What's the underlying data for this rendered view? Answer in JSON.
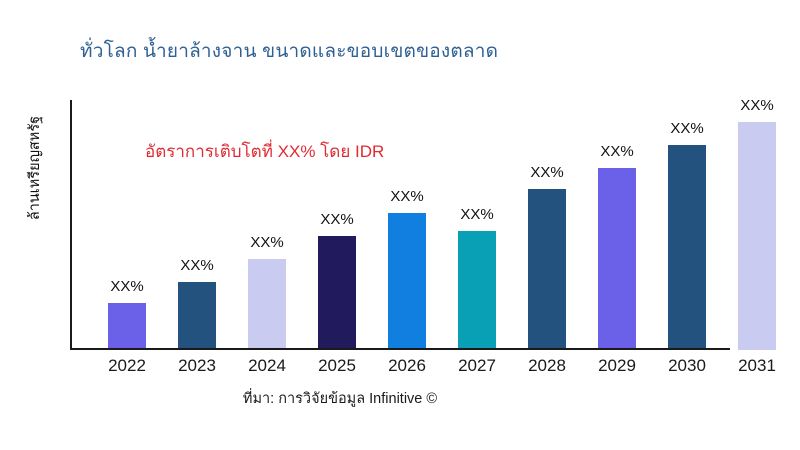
{
  "title": "ทั่วโลก น้ำยาล้างจาน ขนาดและขอบเขตของตลาด",
  "annotation": "อัตราการเติบโตที่ XX% โดย IDR",
  "source": "ที่มา: การวิจัยข้อมูล Infinitive ©",
  "colors": {
    "title": "#2e6094",
    "annotation": "#e02b33",
    "axis": "#1a1a1a",
    "bar_purple": "#6b61e8",
    "bar_steel_blue": "#24527f",
    "bar_lavender": "#c9ccf0",
    "bar_dark_navy": "#211b5e",
    "bar_bright_blue": "#107fe0",
    "bar_teal": "#09a0b5"
  },
  "chart_data": {
    "type": "bar",
    "title": "ทั่วโลก น้ำยาล้างจาน ขนาดและขอบเขตของตลาด",
    "xlabel": "",
    "ylabel": "ล้านเหรียญสหรัฐ",
    "categories": [
      "2022",
      "2023",
      "2024",
      "2025",
      "2026",
      "2027",
      "2028",
      "2029",
      "2030",
      "2031"
    ],
    "values": [
      47,
      68,
      91,
      114,
      137,
      119,
      161,
      182,
      205,
      228
    ],
    "value_labels": [
      "XX%",
      "XX%",
      "XX%",
      "XX%",
      "XX%",
      "XX%",
      "XX%",
      "XX%",
      "XX%",
      "XX%"
    ],
    "bar_colors": [
      "#6b61e8",
      "#24527f",
      "#c9ccf0",
      "#211b5e",
      "#107fe0",
      "#09a0b5",
      "#24527f",
      "#6b61e8",
      "#24527f",
      "#c9ccf0"
    ],
    "ylim": [
      0,
      250
    ],
    "grid": false,
    "legend": false,
    "annotation": "อัตราการเติบโตที่ XX% โดย IDR"
  }
}
